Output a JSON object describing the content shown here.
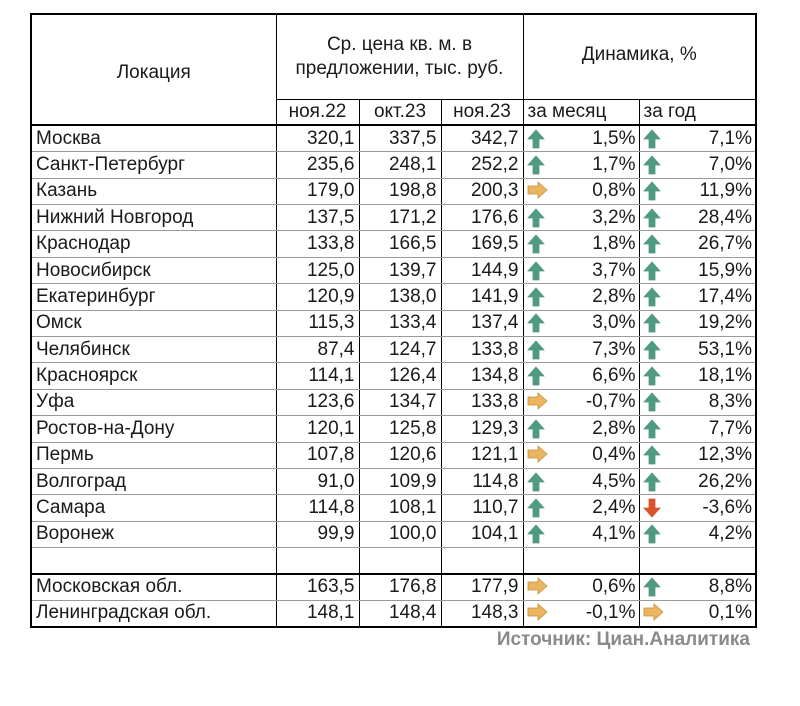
{
  "header": {
    "location": "Локация",
    "price": "Ср. цена кв. м. в предложении, тыс. руб.",
    "dynamics": "Динамика, %",
    "periods": [
      "ноя.22",
      "окт.23",
      "ноя.23"
    ],
    "month": "за месяц",
    "year": "за год"
  },
  "colors": {
    "up": "#4f9a80",
    "flat": "#ebb561",
    "down": "#d9532c"
  },
  "rows": [
    {
      "name": "Москва",
      "v1": "320,1",
      "v2": "337,5",
      "v3": "342,7",
      "m_icon": "up",
      "m": "1,5%",
      "y_icon": "up",
      "y": "7,1%"
    },
    {
      "name": "Санкт-Петербург",
      "v1": "235,6",
      "v2": "248,1",
      "v3": "252,2",
      "m_icon": "up",
      "m": "1,7%",
      "y_icon": "up",
      "y": "7,0%"
    },
    {
      "name": "Казань",
      "v1": "179,0",
      "v2": "198,8",
      "v3": "200,3",
      "m_icon": "flat",
      "m": "0,8%",
      "y_icon": "up",
      "y": "11,9%"
    },
    {
      "name": "Нижний Новгород",
      "v1": "137,5",
      "v2": "171,2",
      "v3": "176,6",
      "m_icon": "up",
      "m": "3,2%",
      "y_icon": "up",
      "y": "28,4%"
    },
    {
      "name": "Краснодар",
      "v1": "133,8",
      "v2": "166,5",
      "v3": "169,5",
      "m_icon": "up",
      "m": "1,8%",
      "y_icon": "up",
      "y": "26,7%"
    },
    {
      "name": "Новосибирск",
      "v1": "125,0",
      "v2": "139,7",
      "v3": "144,9",
      "m_icon": "up",
      "m": "3,7%",
      "y_icon": "up",
      "y": "15,9%"
    },
    {
      "name": "Екатеринбург",
      "v1": "120,9",
      "v2": "138,0",
      "v3": "141,9",
      "m_icon": "up",
      "m": "2,8%",
      "y_icon": "up",
      "y": "17,4%"
    },
    {
      "name": "Омск",
      "v1": "115,3",
      "v2": "133,4",
      "v3": "137,4",
      "m_icon": "up",
      "m": "3,0%",
      "y_icon": "up",
      "y": "19,2%"
    },
    {
      "name": "Челябинск",
      "v1": "87,4",
      "v2": "124,7",
      "v3": "133,8",
      "m_icon": "up",
      "m": "7,3%",
      "y_icon": "up",
      "y": "53,1%"
    },
    {
      "name": "Красноярск",
      "v1": "114,1",
      "v2": "126,4",
      "v3": "134,8",
      "m_icon": "up",
      "m": "6,6%",
      "y_icon": "up",
      "y": "18,1%"
    },
    {
      "name": "Уфа",
      "v1": "123,6",
      "v2": "134,7",
      "v3": "133,8",
      "m_icon": "flat",
      "m": "-0,7%",
      "y_icon": "up",
      "y": "8,3%"
    },
    {
      "name": "Ростов-на-Дону",
      "v1": "120,1",
      "v2": "125,8",
      "v3": "129,3",
      "m_icon": "up",
      "m": "2,8%",
      "y_icon": "up",
      "y": "7,7%"
    },
    {
      "name": "Пермь",
      "v1": "107,8",
      "v2": "120,6",
      "v3": "121,1",
      "m_icon": "flat",
      "m": "0,4%",
      "y_icon": "up",
      "y": "12,3%"
    },
    {
      "name": "Волгоград",
      "v1": "91,0",
      "v2": "109,9",
      "v3": "114,8",
      "m_icon": "up",
      "m": "4,5%",
      "y_icon": "up",
      "y": "26,2%"
    },
    {
      "name": "Самара",
      "v1": "114,8",
      "v2": "108,1",
      "v3": "110,7",
      "m_icon": "up",
      "m": "2,4%",
      "y_icon": "down",
      "y": "-3,6%"
    },
    {
      "name": "Воронеж",
      "v1": "99,9",
      "v2": "100,0",
      "v3": "104,1",
      "m_icon": "up",
      "m": "4,1%",
      "y_icon": "up",
      "y": "4,2%"
    }
  ],
  "regions": [
    {
      "name": "Московская обл.",
      "v1": "163,5",
      "v2": "176,8",
      "v3": "177,9",
      "m_icon": "flat",
      "m": "0,6%",
      "y_icon": "up",
      "y": "8,8%"
    },
    {
      "name": "Ленинградская обл.",
      "v1": "148,1",
      "v2": "148,4",
      "v3": "148,3",
      "m_icon": "flat",
      "m": "-0,1%",
      "y_icon": "flat",
      "y": "0,1%"
    }
  ],
  "source": "Источник: Циан.Аналитика"
}
